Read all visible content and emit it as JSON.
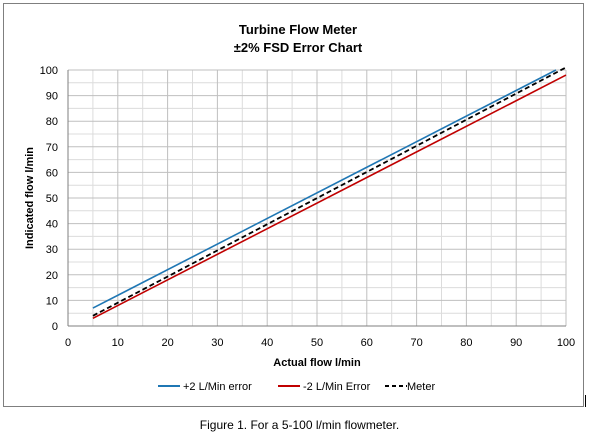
{
  "chart_data": {
    "type": "line",
    "title": "Turbine Flow Meter",
    "subtitle": "±2% FSD Error Chart",
    "xlabel": "Actual flow l/min",
    "ylabel": "Indicated flow l/min",
    "xlim": [
      0,
      100
    ],
    "ylim": [
      0,
      100
    ],
    "xticks": [
      0,
      10,
      20,
      30,
      40,
      50,
      60,
      70,
      80,
      90,
      100
    ],
    "yticks": [
      0,
      10,
      20,
      30,
      40,
      50,
      60,
      70,
      80,
      90,
      100
    ],
    "grid": true,
    "legend_position": "bottom",
    "series": [
      {
        "name": "+2 L/Min error",
        "color": "#1f77b4",
        "dash": "solid",
        "x": [
          5,
          98
        ],
        "y": [
          7,
          100
        ]
      },
      {
        "name": "-2 L/Min Error",
        "color": "#c00000",
        "dash": "solid",
        "x": [
          5,
          100
        ],
        "y": [
          3,
          98
        ]
      },
      {
        "name": "Meter",
        "color": "#000000",
        "dash": "dashed",
        "x": [
          5,
          100
        ],
        "y": [
          4,
          101
        ]
      }
    ]
  },
  "caption": "Figure 1. For a 5-100 l/min flowmeter."
}
